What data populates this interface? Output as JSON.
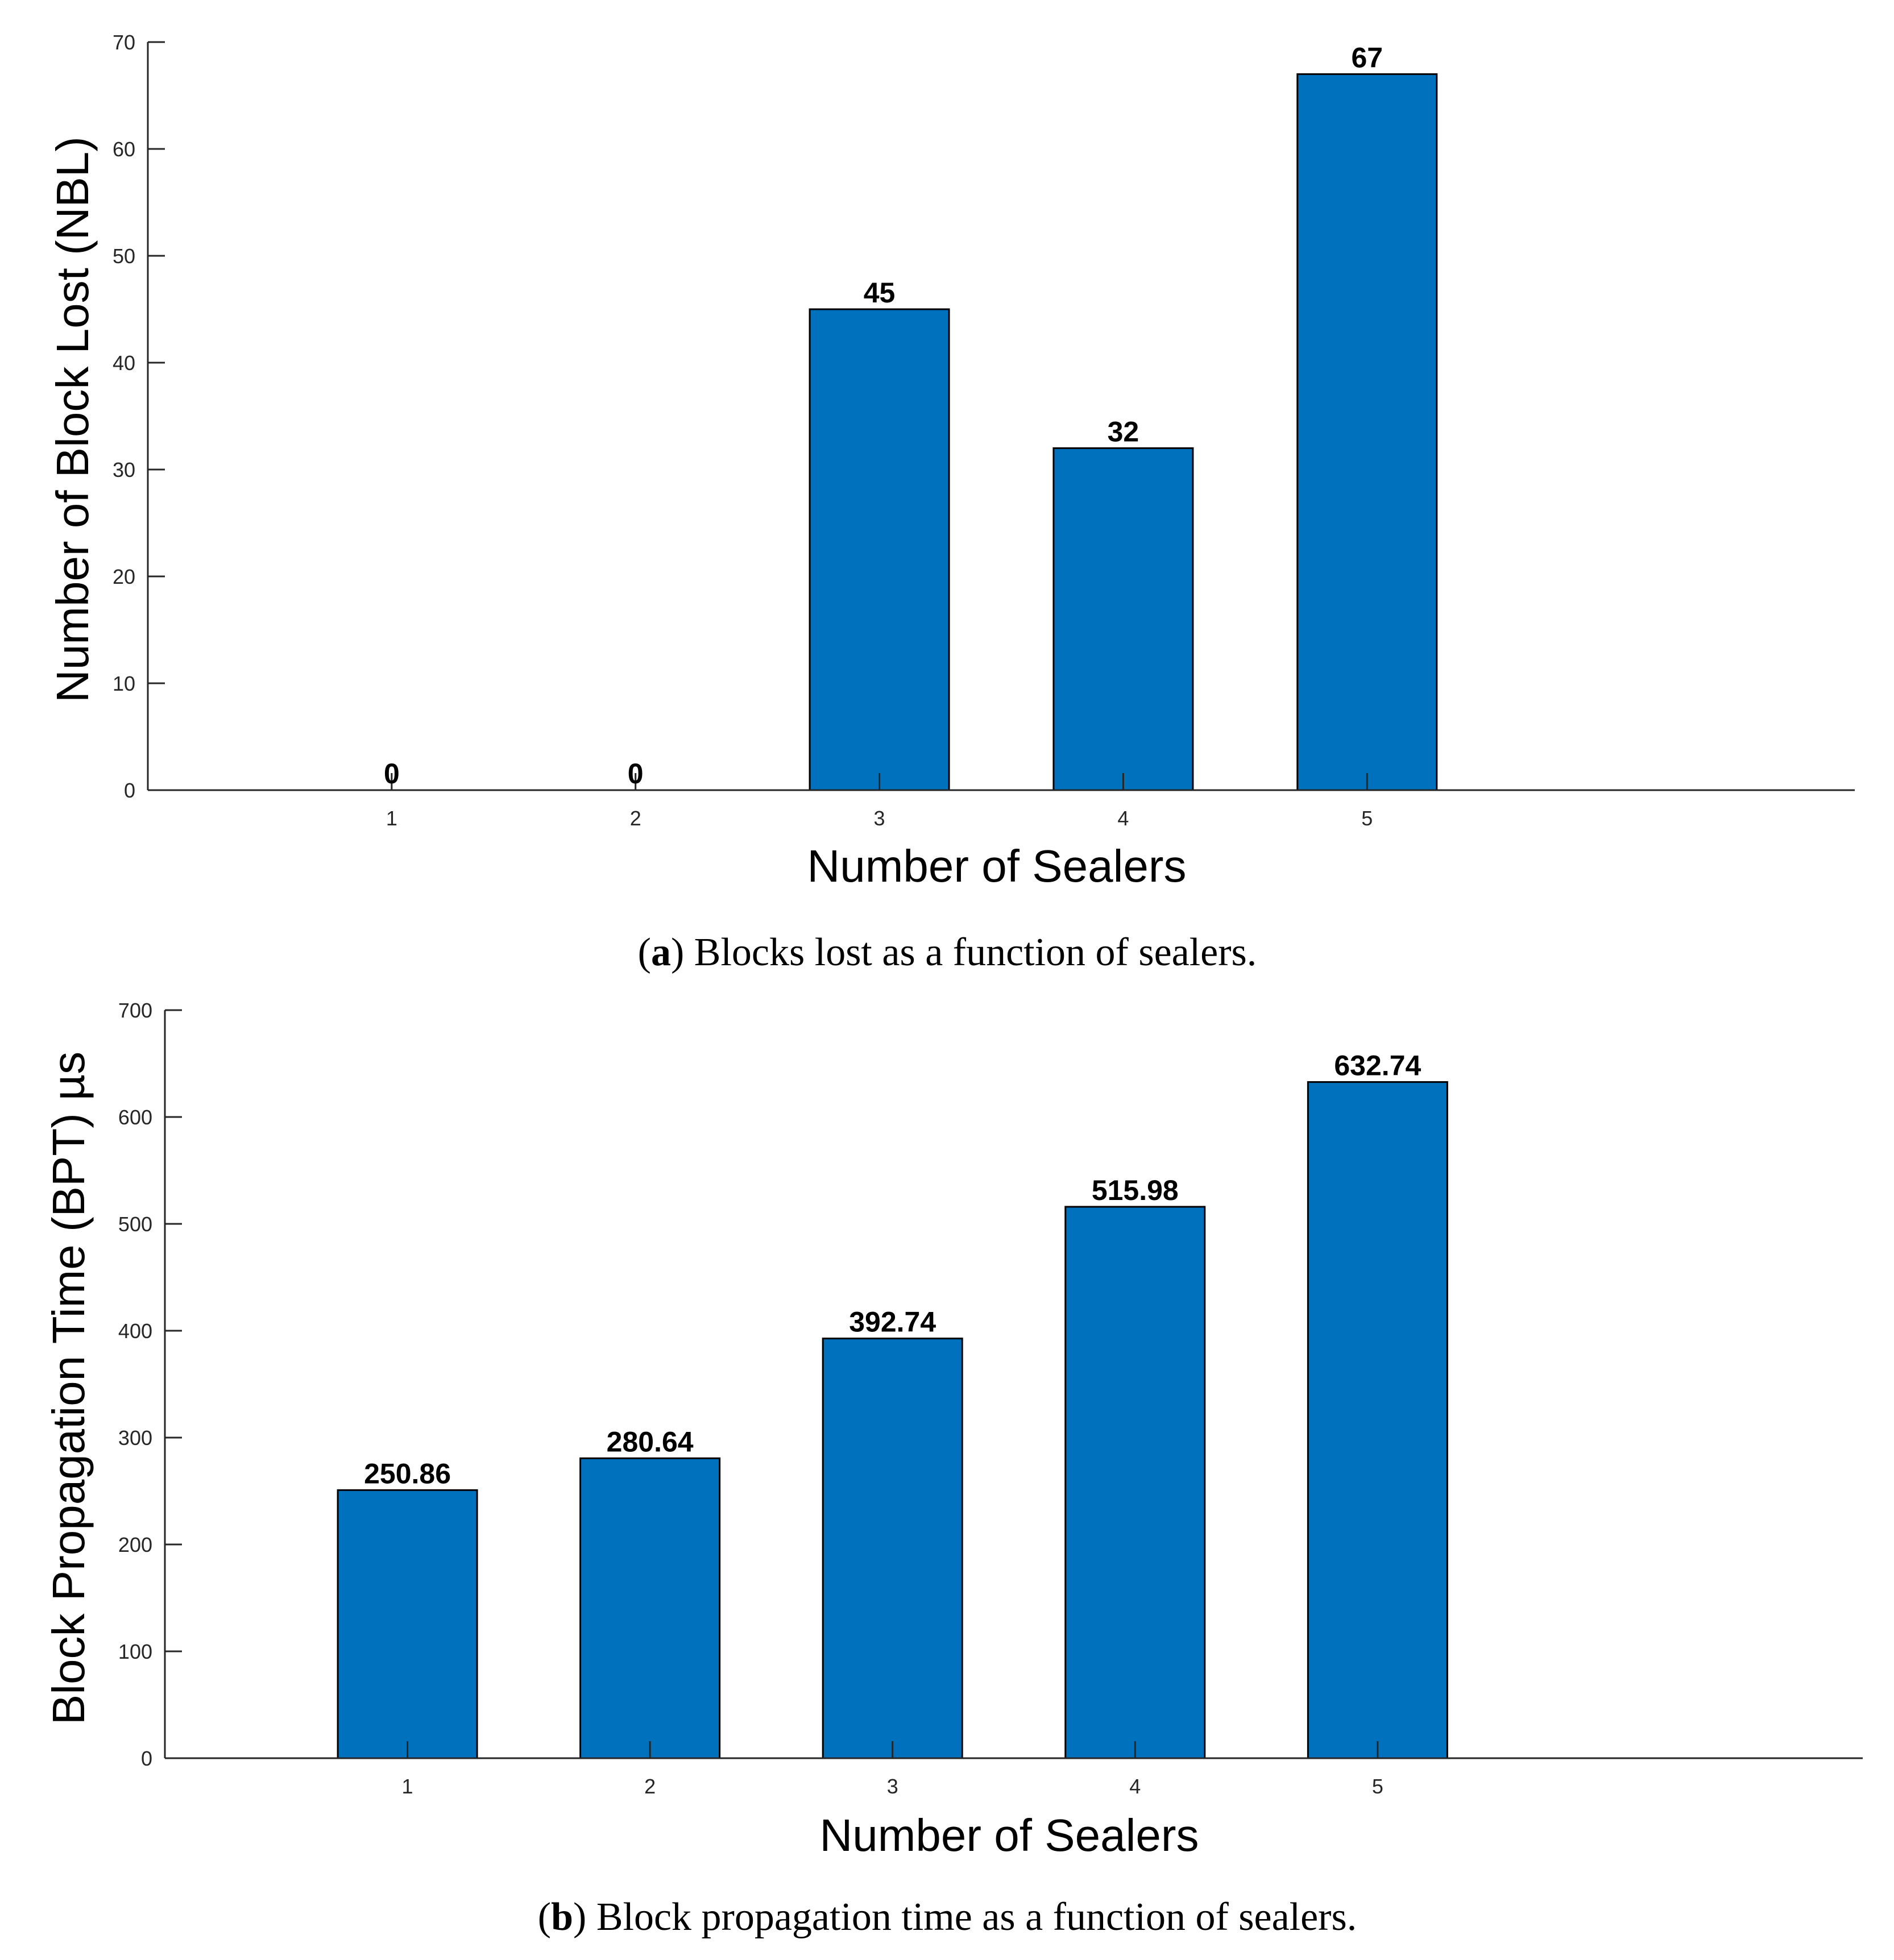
{
  "colors": {
    "bar": "#0072BD",
    "axis": "#262626",
    "text": "#000000"
  },
  "chart_data": [
    {
      "id": "a",
      "type": "bar",
      "categories": [
        "1",
        "2",
        "3",
        "4",
        "5"
      ],
      "values": [
        0,
        0,
        45,
        32,
        67
      ],
      "data_labels": [
        "0",
        "0",
        "45",
        "32",
        "67"
      ],
      "xlabel": "Number of Sealers",
      "ylabel": "Number of Block Lost (NBL)",
      "ylim": [
        0,
        70
      ],
      "yticks": [
        "0",
        "10",
        "20",
        "30",
        "40",
        "50",
        "60",
        "70"
      ],
      "caption_letter": "a",
      "caption_text": "Blocks lost as a function of sealers."
    },
    {
      "id": "b",
      "type": "bar",
      "categories": [
        "1",
        "2",
        "3",
        "4",
        "5"
      ],
      "values": [
        250.86,
        280.64,
        392.74,
        515.98,
        632.74
      ],
      "data_labels": [
        "250.86",
        "280.64",
        "392.74",
        "515.98",
        "632.74"
      ],
      "xlabel": "Number of Sealers",
      "ylabel": "Block Propagation Time (BPT) µs",
      "ylim": [
        0,
        700
      ],
      "yticks": [
        "0",
        "100",
        "200",
        "300",
        "400",
        "500",
        "600",
        "700"
      ],
      "caption_letter": "b",
      "caption_text": "Block propagation time as a function of sealers."
    }
  ]
}
